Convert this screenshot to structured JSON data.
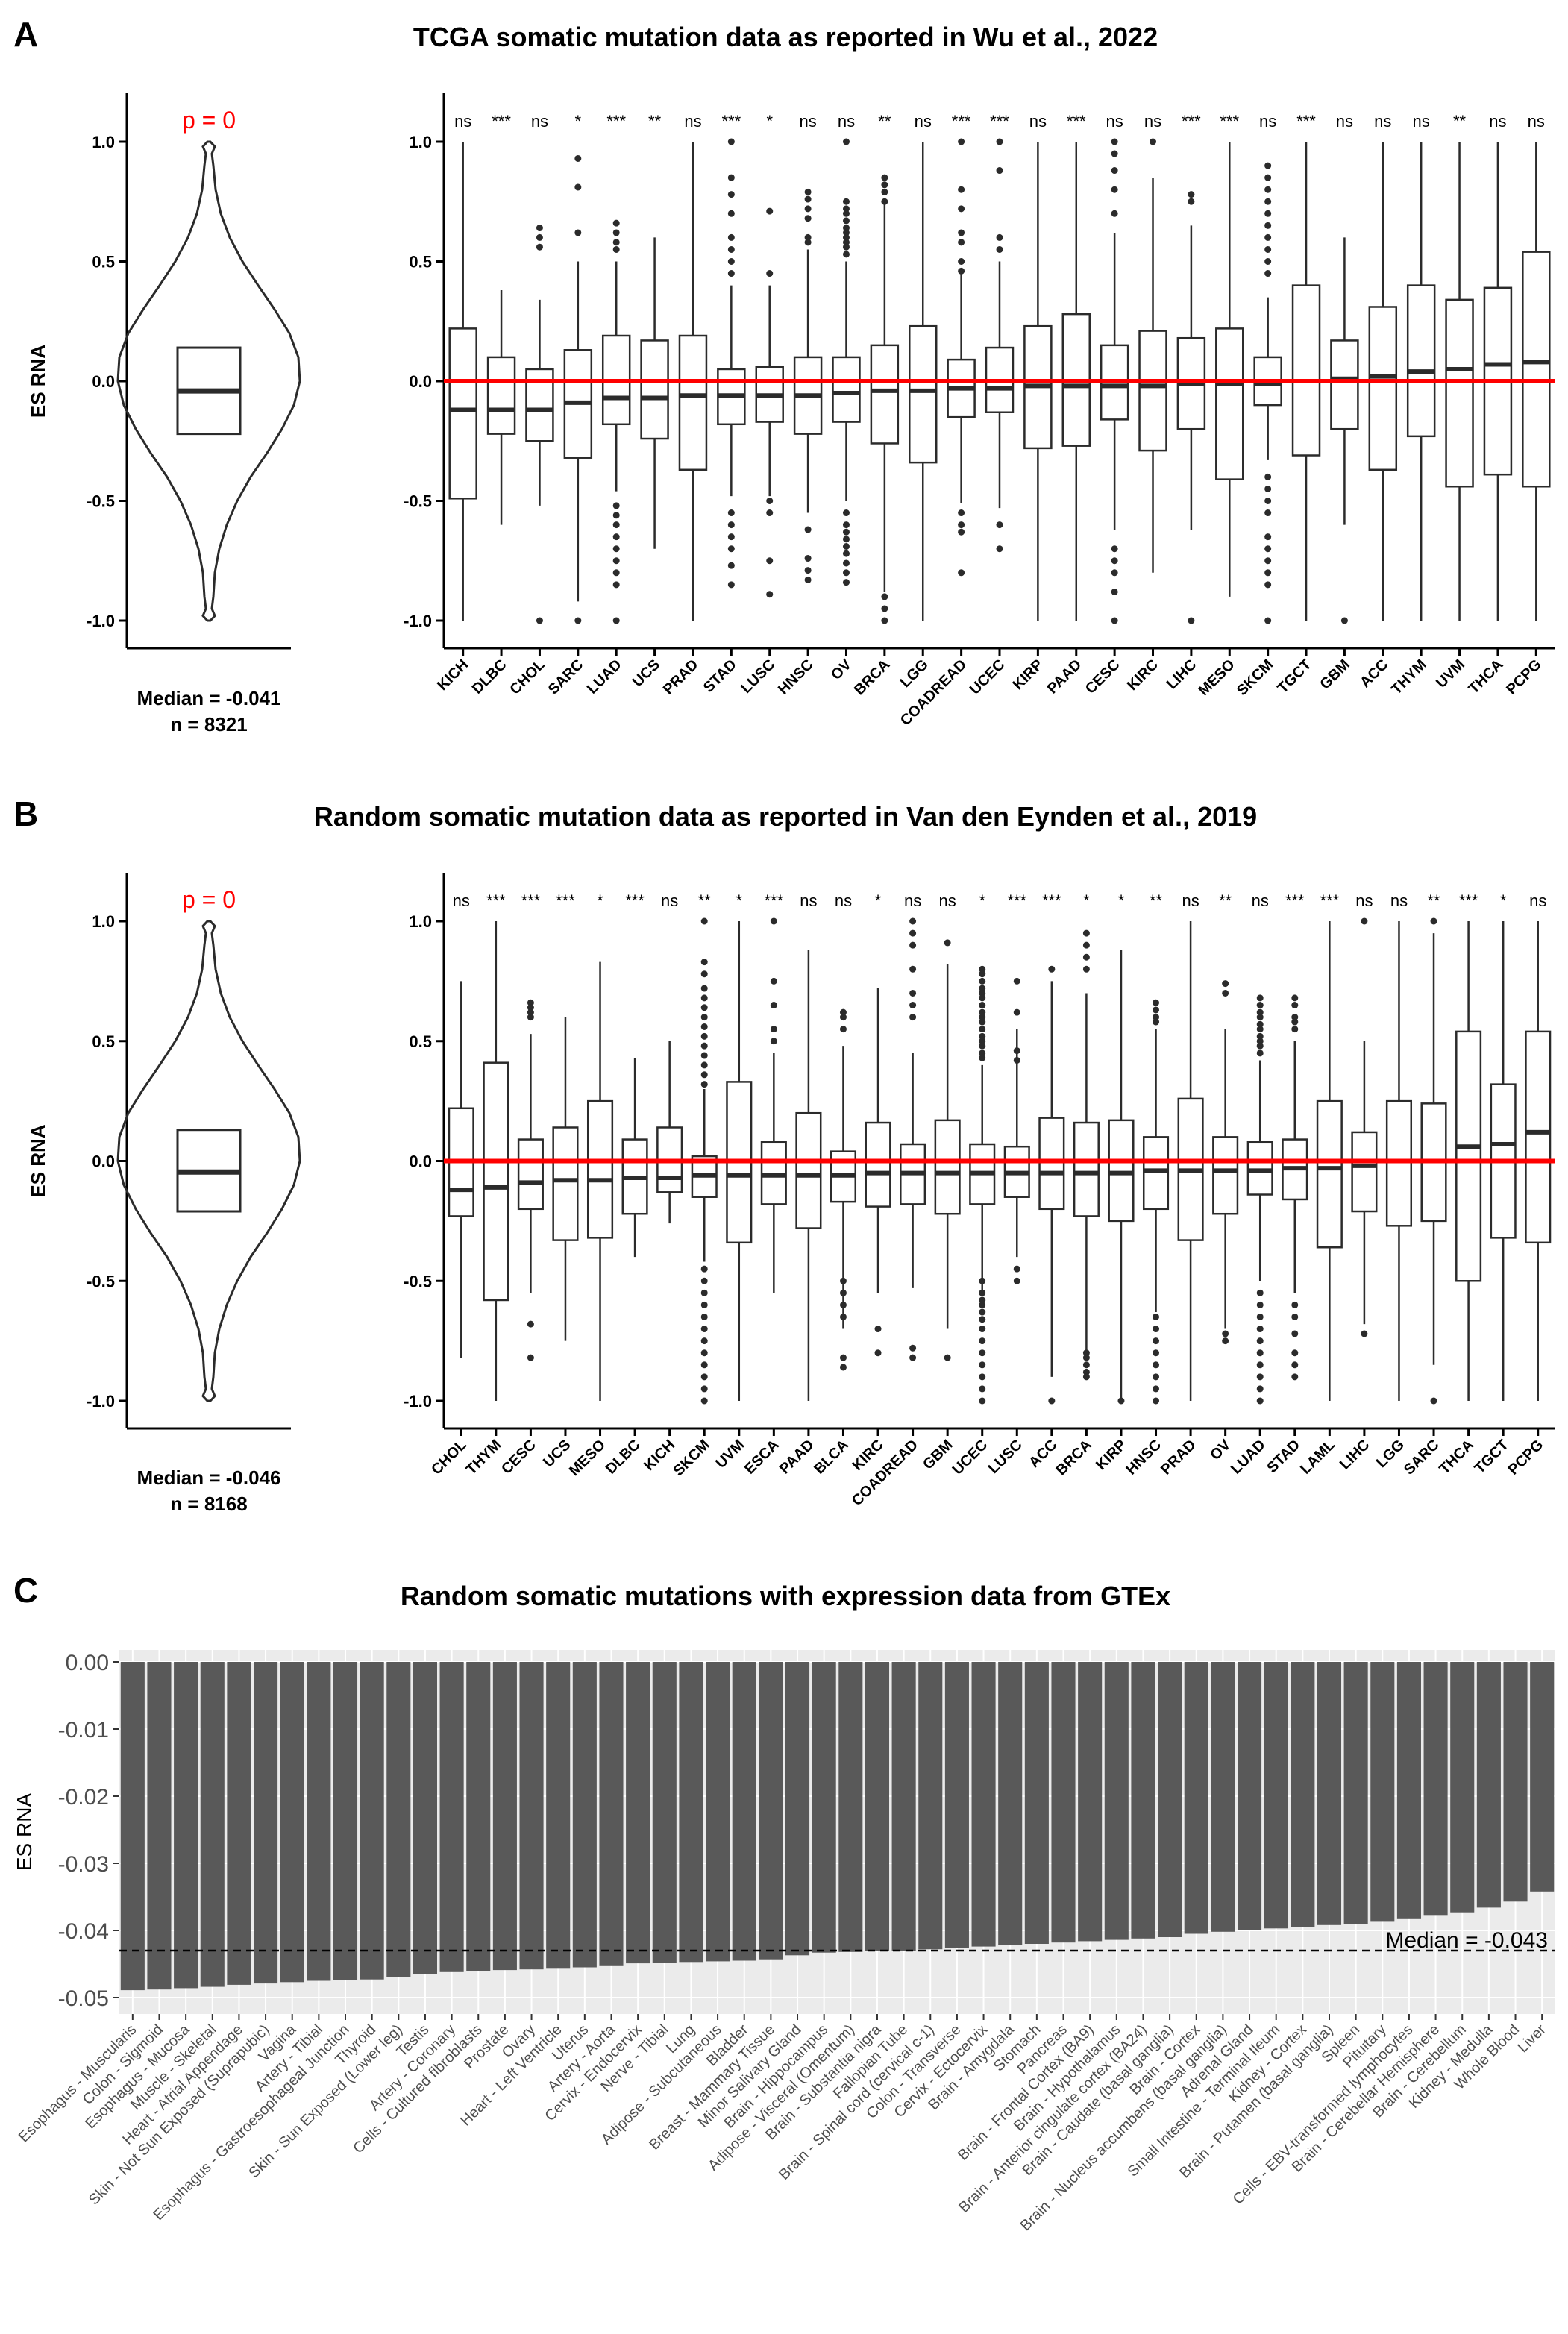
{
  "colors": {
    "accent": "#ff0000",
    "box_stroke": "#2b2b2b",
    "bar_fill": "#595959",
    "panel_bg": "#ebebeb",
    "grid": "#ffffff",
    "text": "#000000",
    "pvalue": "#ff0000"
  },
  "panels": {
    "A": {
      "letter": "A",
      "title": "TCGA somatic mutation data as reported in Wu et al., 2022",
      "violin": {
        "pvalue": "p = 0",
        "ylabel": "ES RNA",
        "median": -0.041,
        "median_label": "Median = -0.041",
        "n_label": "n = 8321",
        "q1": -0.22,
        "q3": 0.14
      }
    },
    "B": {
      "letter": "B",
      "title": "Random somatic mutation data as reported in Van den Eynden et al., 2019",
      "violin": {
        "pvalue": "p = 0",
        "ylabel": "ES RNA",
        "median": -0.046,
        "median_label": "Median = -0.046",
        "n_label": "n = 8168",
        "q1": -0.21,
        "q3": 0.13
      }
    },
    "C": {
      "letter": "C",
      "title": "Random somatic mutations with expression data from GTEx",
      "ylabel": "ES RNA",
      "median_label": "Median = -0.043"
    }
  },
  "chart_data": [
    {
      "type": "box",
      "panel": "A",
      "ylim": [
        -1.0,
        1.0
      ],
      "yticks": [
        "1.0",
        "0.5",
        "0.0",
        "-0.5",
        "-1.0"
      ],
      "reference_line": 0.0,
      "categories": [
        "KICH",
        "DLBC",
        "CHOL",
        "SARC",
        "LUAD",
        "UCS",
        "PRAD",
        "STAD",
        "LUSC",
        "HNSC",
        "OV",
        "BRCA",
        "LGG",
        "COADREAD",
        "UCEC",
        "KIRP",
        "PAAD",
        "CESC",
        "KIRC",
        "LIHC",
        "MESO",
        "SKCM",
        "TGCT",
        "GBM",
        "ACC",
        "THYM",
        "UVM",
        "THCA",
        "PCPG"
      ],
      "significance": [
        "ns",
        "***",
        "ns",
        "*",
        "***",
        "**",
        "ns",
        "***",
        "*",
        "ns",
        "ns",
        "**",
        "ns",
        "***",
        "***",
        "ns",
        "***",
        "ns",
        "ns",
        "***",
        "***",
        "ns",
        "***",
        "ns",
        "ns",
        "ns",
        "**",
        "ns",
        "ns"
      ],
      "median": [
        -0.12,
        -0.12,
        -0.12,
        -0.09,
        -0.07,
        -0.07,
        -0.06,
        -0.06,
        -0.06,
        -0.06,
        -0.05,
        -0.04,
        -0.04,
        -0.03,
        -0.03,
        -0.02,
        -0.02,
        -0.02,
        -0.02,
        -0.01,
        -0.01,
        -0.01,
        0.0,
        0.01,
        0.02,
        0.04,
        0.05,
        0.07,
        0.08
      ],
      "q1": [
        -0.49,
        -0.22,
        -0.25,
        -0.32,
        -0.18,
        -0.24,
        -0.37,
        -0.18,
        -0.17,
        -0.22,
        -0.17,
        -0.26,
        -0.34,
        -0.15,
        -0.13,
        -0.28,
        -0.27,
        -0.16,
        -0.29,
        -0.2,
        -0.41,
        -0.1,
        -0.31,
        -0.2,
        -0.37,
        -0.23,
        -0.44,
        -0.39,
        -0.44
      ],
      "q3": [
        0.22,
        0.1,
        0.05,
        0.13,
        0.19,
        0.17,
        0.19,
        0.05,
        0.06,
        0.1,
        0.1,
        0.15,
        0.23,
        0.09,
        0.14,
        0.23,
        0.28,
        0.15,
        0.21,
        0.18,
        0.22,
        0.1,
        0.4,
        0.17,
        0.31,
        0.4,
        0.34,
        0.39,
        0.54
      ],
      "whisker_low": [
        -1.0,
        -0.6,
        -0.52,
        -0.92,
        -0.46,
        -0.7,
        -1.0,
        -0.48,
        -0.48,
        -0.55,
        -0.5,
        -0.88,
        -1.0,
        -0.51,
        -0.53,
        -1.0,
        -1.0,
        -0.62,
        -0.8,
        -0.62,
        -0.9,
        -0.33,
        -1.0,
        -0.6,
        -1.0,
        -1.0,
        -1.0,
        -1.0,
        -1.0
      ],
      "whisker_high": [
        1.0,
        0.38,
        0.34,
        0.5,
        0.5,
        0.6,
        1.0,
        0.4,
        0.4,
        0.55,
        0.5,
        0.75,
        1.0,
        0.45,
        0.5,
        1.0,
        1.0,
        0.62,
        0.85,
        0.65,
        1.0,
        0.35,
        1.0,
        0.6,
        1.0,
        1.0,
        1.0,
        1.0,
        1.0
      ],
      "outliers": [
        [],
        [],
        [
          -1.0,
          0.64,
          0.6,
          0.56
        ],
        [
          -1.0,
          0.93,
          0.81,
          0.62
        ],
        [
          0.66,
          0.62,
          0.58,
          0.55,
          -0.52,
          -0.56,
          -0.6,
          -0.65,
          -0.7,
          -0.75,
          -0.8,
          -0.85,
          -1.0
        ],
        [],
        [],
        [
          1.0,
          0.85,
          0.78,
          0.7,
          0.6,
          0.55,
          0.5,
          0.45,
          -0.55,
          -0.6,
          -0.65,
          -0.7,
          -0.77,
          -0.85
        ],
        [
          0.71,
          0.45,
          -0.5,
          -0.55,
          -0.75,
          -0.89
        ],
        [
          0.79,
          0.76,
          0.72,
          0.68,
          0.6,
          0.58,
          -0.62,
          -0.74,
          -0.79,
          -0.83
        ],
        [
          1.0,
          0.75,
          0.72,
          0.7,
          0.67,
          0.64,
          0.62,
          0.6,
          0.58,
          0.56,
          0.53,
          -0.55,
          -0.6,
          -0.63,
          -0.66,
          -0.69,
          -0.72,
          -0.76,
          -0.8,
          -0.84
        ],
        [
          0.85,
          0.82,
          0.79,
          0.75,
          -0.9,
          -0.95,
          -1.0
        ],
        [],
        [
          1.0,
          0.8,
          0.72,
          0.62,
          0.58,
          0.5,
          0.46,
          -0.55,
          -0.6,
          -0.63,
          -0.8
        ],
        [
          1.0,
          0.88,
          0.6,
          0.55,
          -0.6,
          -0.7
        ],
        [],
        [],
        [
          1.0,
          0.95,
          0.88,
          0.8,
          0.7,
          -0.7,
          -0.75,
          -0.8,
          -0.88,
          -1.0
        ],
        [
          1.0
        ],
        [
          0.78,
          0.75,
          -1.0
        ],
        [],
        [
          0.9,
          0.85,
          0.8,
          0.75,
          0.7,
          0.65,
          0.6,
          0.55,
          0.5,
          0.45,
          -0.4,
          -0.45,
          -0.5,
          -0.55,
          -0.65,
          -0.7,
          -0.75,
          -0.8,
          -0.85,
          -1.0
        ],
        [],
        [
          -1.0
        ],
        [],
        [],
        [],
        [],
        []
      ]
    },
    {
      "type": "box",
      "panel": "B",
      "ylim": [
        -1.0,
        1.0
      ],
      "yticks": [
        "1.0",
        "0.5",
        "0.0",
        "-0.5",
        "-1.0"
      ],
      "reference_line": 0.0,
      "categories": [
        "CHOL",
        "THYM",
        "CESC",
        "UCS",
        "MESO",
        "DLBC",
        "KICH",
        "SKCM",
        "UVM",
        "ESCA",
        "PAAD",
        "BLCA",
        "KIRC",
        "COADREAD",
        "GBM",
        "UCEC",
        "LUSC",
        "ACC",
        "BRCA",
        "KIRP",
        "HNSC",
        "PRAD",
        "OV",
        "LUAD",
        "STAD",
        "LAML",
        "LIHC",
        "LGG",
        "SARC",
        "THCA",
        "TGCT",
        "PCPG"
      ],
      "significance": [
        "ns",
        "***",
        "***",
        "***",
        "*",
        "***",
        "ns",
        "**",
        "*",
        "***",
        "ns",
        "ns",
        "*",
        "ns",
        "ns",
        "*",
        "***",
        "***",
        "*",
        "*",
        "**",
        "ns",
        "**",
        "ns",
        "***",
        "***",
        "ns",
        "ns",
        "**",
        "***",
        "*",
        "ns"
      ],
      "median": [
        -0.12,
        -0.11,
        -0.09,
        -0.08,
        -0.08,
        -0.07,
        -0.07,
        -0.06,
        -0.06,
        -0.06,
        -0.06,
        -0.06,
        -0.05,
        -0.05,
        -0.05,
        -0.05,
        -0.05,
        -0.05,
        -0.05,
        -0.05,
        -0.04,
        -0.04,
        -0.04,
        -0.04,
        -0.03,
        -0.03,
        -0.02,
        0.0,
        0.0,
        0.06,
        0.07,
        0.12
      ],
      "q1": [
        -0.23,
        -0.58,
        -0.2,
        -0.33,
        -0.32,
        -0.22,
        -0.13,
        -0.15,
        -0.34,
        -0.18,
        -0.28,
        -0.17,
        -0.19,
        -0.18,
        -0.22,
        -0.18,
        -0.15,
        -0.2,
        -0.23,
        -0.25,
        -0.2,
        -0.33,
        -0.22,
        -0.14,
        -0.16,
        -0.36,
        -0.21,
        -0.27,
        -0.25,
        -0.5,
        -0.32,
        -0.34
      ],
      "q3": [
        0.22,
        0.41,
        0.09,
        0.14,
        0.25,
        0.09,
        0.14,
        0.02,
        0.33,
        0.08,
        0.2,
        0.04,
        0.16,
        0.07,
        0.17,
        0.07,
        0.06,
        0.18,
        0.16,
        0.17,
        0.1,
        0.26,
        0.1,
        0.08,
        0.09,
        0.25,
        0.12,
        0.25,
        0.24,
        0.54,
        0.32,
        0.54
      ],
      "whisker_low": [
        -0.82,
        -1.0,
        -0.55,
        -0.75,
        -1.0,
        -0.4,
        -0.26,
        -0.42,
        -1.0,
        -0.55,
        -1.0,
        -0.7,
        -0.55,
        -0.53,
        -0.7,
        -0.55,
        -0.4,
        -0.9,
        -0.82,
        -1.0,
        -0.63,
        -1.0,
        -0.7,
        -0.5,
        -0.55,
        -1.0,
        -0.68,
        -1.0,
        -0.85,
        -1.0,
        -1.0,
        -1.0
      ],
      "whisker_high": [
        0.75,
        1.0,
        0.53,
        0.6,
        0.83,
        0.43,
        0.5,
        0.3,
        1.0,
        0.45,
        0.88,
        0.48,
        0.72,
        0.45,
        0.82,
        0.4,
        0.55,
        0.75,
        0.7,
        0.88,
        0.55,
        1.0,
        0.55,
        0.42,
        0.5,
        1.0,
        0.5,
        1.0,
        0.95,
        1.0,
        1.0,
        1.0
      ],
      "outliers": [
        [],
        [],
        [
          0.66,
          0.64,
          0.62,
          0.6,
          -0.68,
          -0.82
        ],
        [],
        [],
        [],
        [],
        [
          1.0,
          0.83,
          0.78,
          0.72,
          0.68,
          0.64,
          0.6,
          0.56,
          0.52,
          0.48,
          0.44,
          0.4,
          0.36,
          0.32,
          -0.45,
          -0.5,
          -0.55,
          -0.6,
          -0.65,
          -0.7,
          -0.75,
          -0.8,
          -0.85,
          -0.9,
          -0.95,
          -1.0
        ],
        [],
        [
          1.0,
          0.75,
          0.65,
          0.55,
          0.5
        ],
        [],
        [
          0.62,
          0.6,
          0.55,
          -0.5,
          -0.55,
          -0.6,
          -0.65,
          -0.82,
          -0.86
        ],
        [
          -0.7,
          -0.8
        ],
        [
          1.0,
          0.95,
          0.9,
          0.8,
          0.7,
          0.65,
          0.6,
          -0.78,
          -0.82
        ],
        [
          0.91,
          -0.82
        ],
        [
          0.8,
          0.78,
          0.75,
          0.72,
          0.7,
          0.68,
          0.65,
          0.62,
          0.6,
          0.58,
          0.55,
          0.52,
          0.5,
          0.48,
          0.45,
          0.43,
          -0.5,
          -0.55,
          -0.58,
          -0.6,
          -0.63,
          -0.66,
          -0.7,
          -0.75,
          -0.8,
          -0.85,
          -0.9,
          -0.95,
          -1.0
        ],
        [
          0.75,
          0.62,
          0.46,
          0.42,
          -0.45,
          -0.5
        ],
        [
          0.8,
          -1.0
        ],
        [
          0.95,
          0.9,
          0.85,
          0.8,
          -0.8,
          -0.82,
          -0.85,
          -0.88,
          -0.9
        ],
        [
          -1.0
        ],
        [
          0.66,
          0.63,
          0.6,
          0.58,
          -0.65,
          -0.7,
          -0.75,
          -0.8,
          -0.85,
          -0.9,
          -0.95,
          -1.0
        ],
        [],
        [
          0.74,
          0.7,
          -0.72,
          -0.75
        ],
        [
          0.68,
          0.65,
          0.62,
          0.6,
          0.57,
          0.55,
          0.52,
          0.5,
          0.48,
          0.45,
          -0.55,
          -0.6,
          -0.65,
          -0.7,
          -0.75,
          -0.8,
          -0.85,
          -0.9,
          -0.95,
          -1.0
        ],
        [
          0.68,
          0.65,
          0.6,
          0.58,
          0.55,
          -0.6,
          -0.65,
          -0.72,
          -0.8,
          -0.85,
          -0.9
        ],
        [],
        [
          1.0,
          -0.72
        ],
        [],
        [
          1.0,
          -1.0
        ],
        [],
        [],
        []
      ]
    },
    {
      "type": "bar",
      "panel": "C",
      "ylim": [
        -0.05,
        0.0
      ],
      "yticks": [
        "0.00",
        "-0.01",
        "-0.02",
        "-0.03",
        "-0.04",
        "-0.05"
      ],
      "reference_line": -0.043,
      "categories": [
        "Esophagus - Muscularis",
        "Colon - Sigmoid",
        "Esophagus - Mucosa",
        "Muscle - Skeletal",
        "Heart - Atrial Appendage",
        "Skin - Not Sun Exposed (Suprapubic)",
        "Vagina",
        "Artery - Tibial",
        "Esophagus - Gastroesophageal Junction",
        "Thyroid",
        "Skin - Sun Exposed (Lower leg)",
        "Testis",
        "Artery - Coronary",
        "Cells - Cultured fibroblasts",
        "Prostate",
        "Ovary",
        "Heart - Left Ventricle",
        "Uterus",
        "Artery - Aorta",
        "Cervix - Endocervix",
        "Nerve - Tibial",
        "Lung",
        "Adipose - Subcutaneous",
        "Bladder",
        "Breast - Mammary Tissue",
        "Minor Salivary Gland",
        "Brain - Hippocampus",
        "Adipose - Visceral (Omentum)",
        "Brain - Substantia nigra",
        "Fallopian Tube",
        "Brain - Spinal cord (cervical c-1)",
        "Colon - Transverse",
        "Cervix - Ectocervix",
        "Brain - Amygdala",
        "Stomach",
        "Pancreas",
        "Brain - Frontal Cortex (BA9)",
        "Brain - Hypothalamus",
        "Brain - Anterior cingulate cortex (BA24)",
        "Brain - Caudate (basal ganglia)",
        "Brain - Cortex",
        "Brain - Nucleus accumbens (basal ganglia)",
        "Adrenal Gland",
        "Small Intestine - Terminal Ileum",
        "Kidney - Cortex",
        "Brain - Putamen (basal ganglia)",
        "Spleen",
        "Pituitary",
        "Cells - EBV-transformed lymphocytes",
        "Brain - Cerebellar Hemisphere",
        "Brain - Cerebellum",
        "Kidney - Medulla",
        "Whole Blood",
        "Liver"
      ],
      "values": [
        -0.0489,
        -0.0488,
        -0.0486,
        -0.0484,
        -0.0481,
        -0.0479,
        -0.0477,
        -0.0475,
        -0.0474,
        -0.0473,
        -0.0469,
        -0.0465,
        -0.0462,
        -0.046,
        -0.0459,
        -0.0458,
        -0.0457,
        -0.0455,
        -0.0452,
        -0.0449,
        -0.0448,
        -0.0447,
        -0.0446,
        -0.0445,
        -0.0443,
        -0.0437,
        -0.0433,
        -0.0432,
        -0.0431,
        -0.043,
        -0.0428,
        -0.0426,
        -0.0424,
        -0.0422,
        -0.042,
        -0.0418,
        -0.0416,
        -0.0414,
        -0.0412,
        -0.041,
        -0.0405,
        -0.0402,
        -0.04,
        -0.0397,
        -0.0395,
        -0.0392,
        -0.039,
        -0.0386,
        -0.0382,
        -0.0377,
        -0.0373,
        -0.0366,
        -0.0357,
        -0.0342
      ]
    }
  ]
}
